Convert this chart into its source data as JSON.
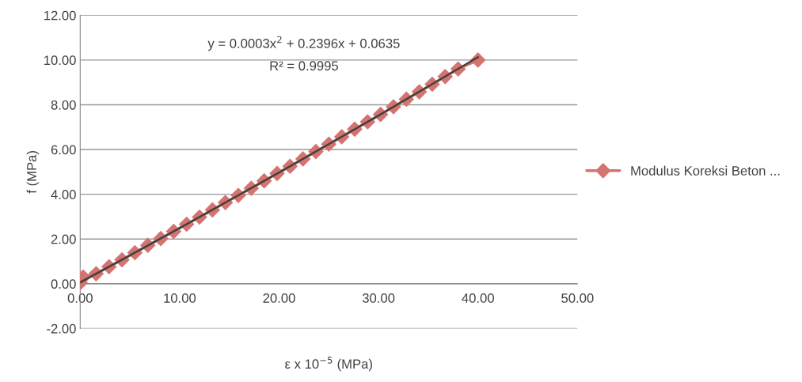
{
  "chart_data": {
    "type": "line",
    "xlabel": "ε x 10$^{−5}$ (MPa)",
    "ylabel": "f (MPa)",
    "annotations": [
      "y = 0.0003x$^{2}$ + 0.2396x + 0.0635",
      "R² = 0.9995"
    ],
    "xlim": [
      0,
      50
    ],
    "xticks": [
      {
        "value": 0,
        "label": "0.00"
      },
      {
        "value": 10,
        "label": "10.00"
      },
      {
        "value": 20,
        "label": "20.00"
      },
      {
        "value": 30,
        "label": "30.00"
      },
      {
        "value": 40,
        "label": "40.00"
      },
      {
        "value": 50,
        "label": "50.00"
      }
    ],
    "ylim": [
      -2,
      12
    ],
    "yticks": [
      {
        "value": -2,
        "label": "-2.00"
      },
      {
        "value": 0,
        "label": "0.00"
      },
      {
        "value": 2,
        "label": "2.00"
      },
      {
        "value": 4,
        "label": "4.00"
      },
      {
        "value": 6,
        "label": "6.00"
      },
      {
        "value": 8,
        "label": "8.00"
      },
      {
        "value": 10,
        "label": "10.00"
      },
      {
        "value": 12,
        "label": "12.00"
      }
    ],
    "grid": "y",
    "legend": "right",
    "series": [
      {
        "name": "Modulus Koreksi Beton ...",
        "color": "#d4736f",
        "marker": "diamond",
        "line_style": "solid",
        "x": [
          0,
          0.3,
          1.6,
          2.9,
          4.2,
          5.5,
          6.8,
          8.1,
          9.4,
          10.7,
          12.0,
          13.3,
          14.6,
          15.9,
          17.2,
          18.5,
          19.8,
          21.1,
          22.4,
          23.7,
          25.0,
          26.3,
          27.6,
          28.9,
          30.2,
          31.5,
          32.8,
          34.1,
          35.4,
          36.7,
          38.0,
          40.0
        ],
        "values": [
          0.05,
          0.3,
          0.45,
          0.76,
          1.07,
          1.39,
          1.72,
          2.02,
          2.34,
          2.66,
          2.98,
          3.3,
          3.63,
          3.95,
          4.27,
          4.6,
          4.93,
          5.25,
          5.58,
          5.91,
          6.24,
          6.57,
          6.91,
          7.24,
          7.57,
          7.91,
          8.25,
          8.58,
          8.92,
          9.26,
          9.6,
          10.0
        ]
      },
      {
        "type": "line",
        "color": "#404040",
        "marker": "none",
        "line_style": "solid",
        "x": [
          0,
          5,
          10,
          15,
          20,
          25,
          30,
          35,
          40
        ],
        "values": [
          0.06,
          1.27,
          2.49,
          3.73,
          4.97,
          6.24,
          7.52,
          8.82,
          10.13
        ]
      }
    ]
  }
}
